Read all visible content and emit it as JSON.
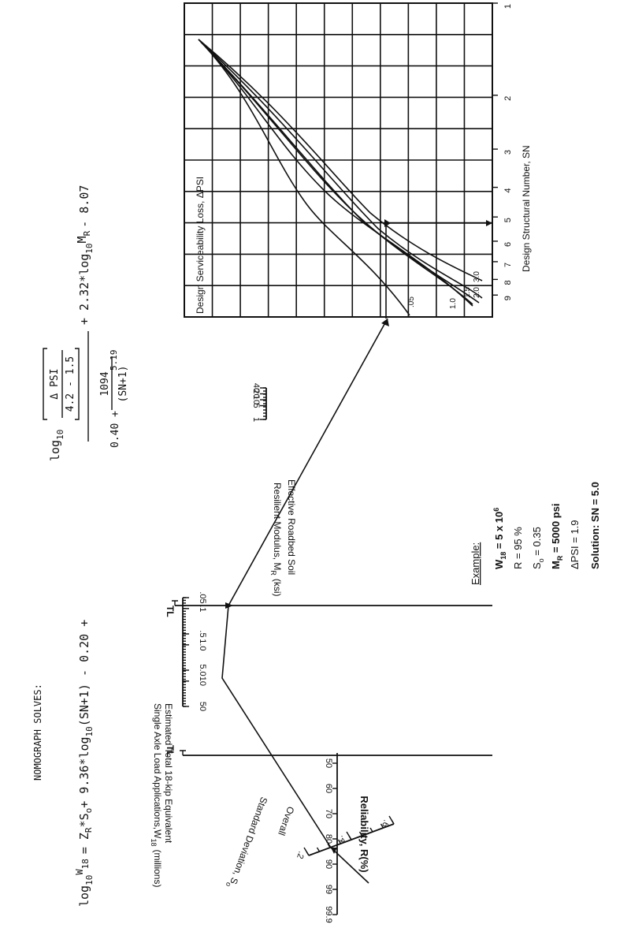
{
  "header": {
    "title": "NOMOGRAPH SOLVES:"
  },
  "equation": {
    "lhs_log": "log",
    "lhs_base": "10",
    "lhs_w": "W",
    "lhs_sub": "18",
    "main_terms": "= Z",
    "zr_sub": "R",
    "so_part": "*S",
    "so_sub": "o",
    "sn_term": "+ 9.36*log",
    "sn_base": "10",
    "sn_arg": "(SN+1) - 0.20 +",
    "frac_num_log": "log",
    "frac_num_base": "10",
    "dpsi": "Δ PSI",
    "dpsi_den": "4.2 - 1.5",
    "frac_den_a": "0.40 +",
    "frac_den_num": "1094",
    "frac_den_den": "(SN+1)",
    "frac_den_exp": "5.19",
    "mr_term": "+ 2.32*log",
    "mr_base": "10",
    "mr_sym": "M",
    "mr_sub": "R",
    "const": "- 8.07"
  },
  "scales": {
    "reliability": {
      "label": "Reliability, R(%)",
      "ticks": [
        "99.9",
        "99",
        "90",
        "80",
        "70",
        "60",
        "50"
      ]
    },
    "std_dev": {
      "label_a": "Overall",
      "label_b": "Standard Deviation, S",
      "label_sub": "o",
      "ticks": [
        ".2",
        ".4",
        ".6"
      ]
    },
    "tl1": {
      "label": "TL"
    },
    "esal": {
      "label_a": "Estimated Total 18-kip Equivalent",
      "label_b": "Single Axle Load Applications,W",
      "label_sub": "18",
      "label_unit": "(millions)",
      "ticks": [
        "50",
        "10",
        "5.0",
        "1.0",
        ".5",
        ".1",
        ".05"
      ]
    },
    "tl2": {
      "label": "TL"
    },
    "mr": {
      "label_a": "Effective Roadbed Soil",
      "label_b": "Resilient Modulus, M",
      "label_sub": "R",
      "label_unit": "(ksi)",
      "ticks": [
        "40",
        "20",
        "10",
        "5",
        "1"
      ]
    }
  },
  "design_chart": {
    "psi_label": "Design Serviceability Loss,  ΔPSI",
    "sn_label": "Design Structural Number,  SN",
    "sn_ticks": [
      "1",
      "2",
      "3",
      "4",
      "5",
      "6",
      "7",
      "8",
      "9"
    ],
    "curve_labels": [
      ".05",
      "1.0",
      "1.5",
      "2.0",
      "3.0"
    ]
  },
  "example": {
    "heading": "Example:",
    "w18": "W",
    "w18_sub": "18",
    "w18_val": " = 5 x 10",
    "w18_exp": "6",
    "r": "R = 95 %",
    "so": "S",
    "so_sub": "o",
    "so_val": " = 0.35",
    "mr": "M",
    "mr_sub": "R",
    "mr_val": " = 5000 psi",
    "dpsi": "ΔPSI = 1.9",
    "solution": "Solution:  SN = 5.0"
  },
  "chart_data": {
    "type": "nomograph",
    "title": "NOMOGRAPH SOLVES:",
    "scales": [
      {
        "name": "Reliability, R(%)",
        "ticks": [
          99.9,
          99,
          90,
          80,
          70,
          60,
          50
        ]
      },
      {
        "name": "Overall Standard Deviation, So",
        "ticks": [
          0.2,
          0.4,
          0.6
        ]
      },
      {
        "name": "Estimated Total 18-kip Equivalent Single Axle Load Applications, W18 (millions)",
        "ticks": [
          50,
          10,
          5.0,
          1.0,
          0.5,
          0.1,
          0.05
        ]
      },
      {
        "name": "Effective Roadbed Soil Resilient Modulus, MR (ksi)",
        "ticks": [
          40,
          20,
          10,
          5,
          1
        ]
      },
      {
        "name": "Design Structural Number, SN",
        "ticks": [
          1,
          2,
          3,
          4,
          5,
          6,
          7,
          8,
          9
        ]
      }
    ],
    "psi_curves": [
      0.05,
      1.0,
      1.5,
      2.0,
      3.0
    ],
    "example": {
      "W18": 5000000,
      "R": 95,
      "So": 0.35,
      "MR_psi": 5000,
      "dPSI": 1.9,
      "SN": 5.0
    }
  }
}
